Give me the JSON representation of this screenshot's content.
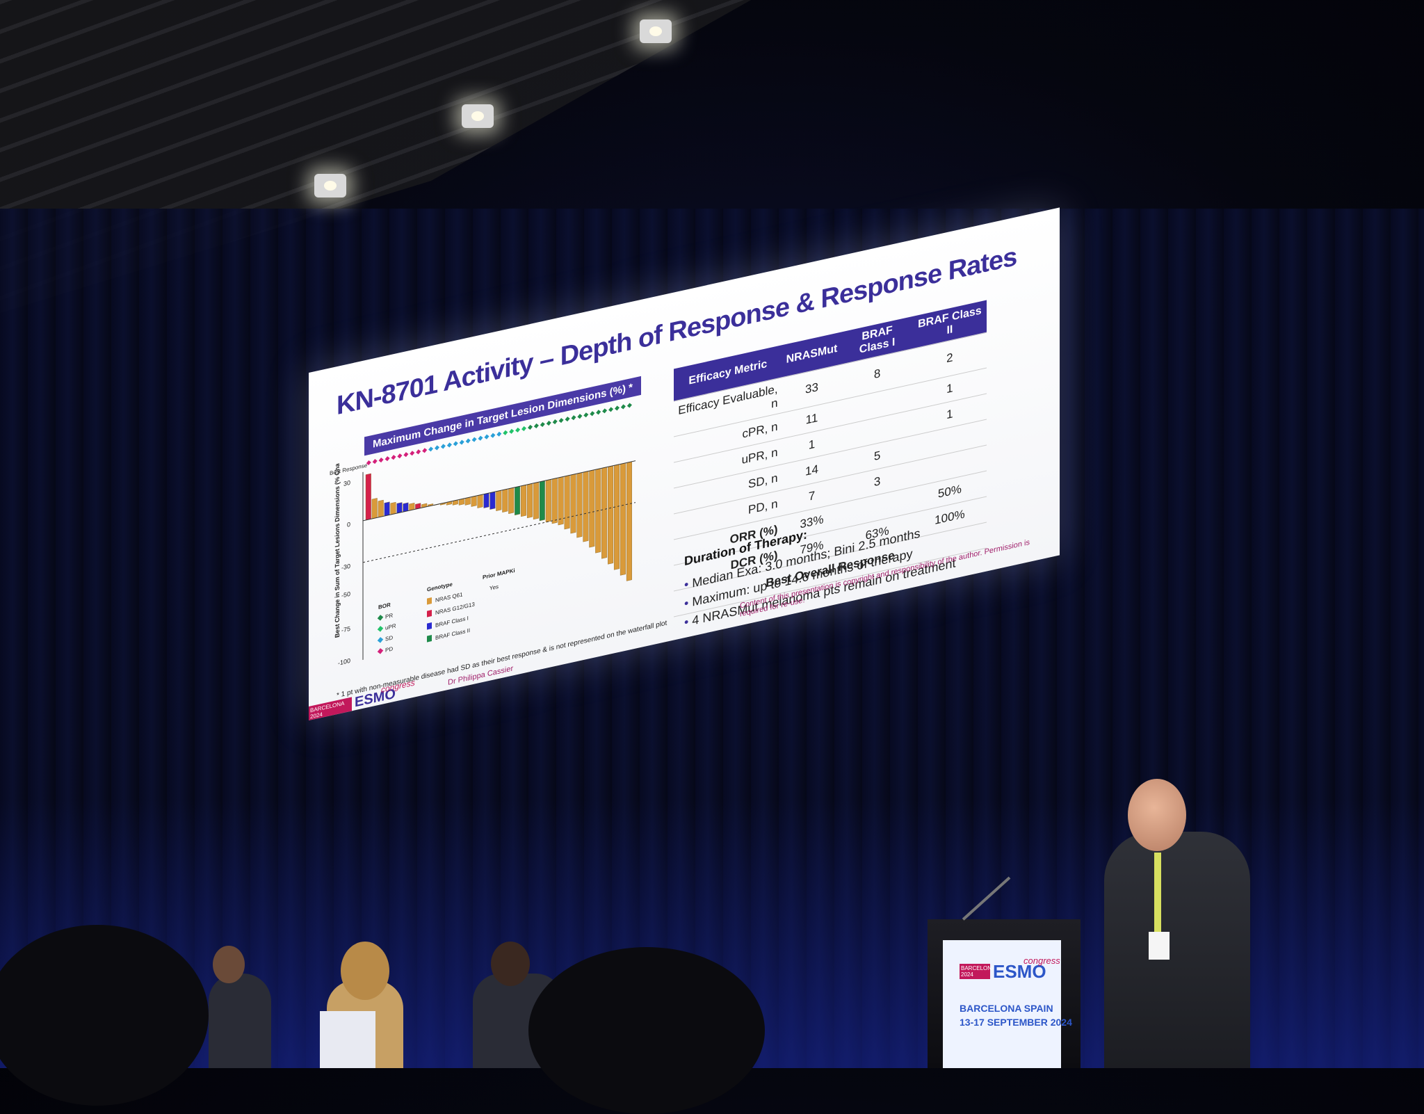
{
  "slide": {
    "title": "KN-8701 Activity – Depth of Response & Response Rates",
    "subtitle": "Maximum Change in Target Lesion Dimensions (%) *",
    "y_axis_label": "Best Change in Sum of Target Lesions Dimensions (% Change From Baseline)",
    "best_response_label": "Best Response",
    "y_ticks": [
      "30",
      "0",
      "-30",
      "-50",
      "-75",
      "-100"
    ],
    "legend": {
      "bor_title": "BOR",
      "bor": [
        "PR",
        "uPR",
        "SD",
        "PD"
      ],
      "genotype_title": "Genotype",
      "genotype": [
        "NRAS Q61",
        "NRAS G12/G13",
        "BRAF Class I",
        "BRAF Class II"
      ],
      "prior_title": "Prior MAPKi",
      "prior": "Yes"
    },
    "table": {
      "headers": [
        "Efficacy Metric",
        "NRASMut",
        "BRAF Class I",
        "BRAF Class II"
      ],
      "rows": [
        {
          "label": "Efficacy Evaluable, n",
          "values": [
            "33",
            "8",
            "2"
          ]
        },
        {
          "label": "cPR, n",
          "values": [
            "11",
            "",
            "1"
          ]
        },
        {
          "label": "uPR, n",
          "values": [
            "1",
            "",
            "1"
          ]
        },
        {
          "label": "SD, n",
          "values": [
            "14",
            "5",
            ""
          ]
        },
        {
          "label": "PD, n",
          "values": [
            "7",
            "3",
            ""
          ]
        },
        {
          "label": "ORR (%)",
          "values": [
            "33%",
            "",
            "50%"
          ]
        },
        {
          "label": "DCR (%)",
          "values": [
            "79%",
            "63%",
            "100%"
          ]
        }
      ],
      "group_label": "Best Overall Response"
    },
    "duration": {
      "title": "Duration of Therapy:",
      "items": [
        "Median Exa: 3.0 months; Bini 2.5 months",
        "Maximum: up to 14.6 months of therapy",
        "4 NRASMut melanoma pts remain on treatment"
      ]
    },
    "footnote": "* 1 pt with non-measurable disease had SD as their best response & is not represented on the waterfall plot",
    "copyright": "Content of this presentation is copyright and responsibility of the author. Permission is required for re-use.",
    "author": "Dr Philippa Cassier",
    "logo_city": "BARCELONA 2024",
    "logo_brand": "ESMO",
    "logo_congress": "congress"
  },
  "podium": {
    "city_year": "BARCELONA 2024",
    "brand": "ESMO",
    "congress": "congress",
    "location": "BARCELONA SPAIN",
    "dates": "13-17 SEPTEMBER 2024"
  },
  "colors": {
    "title": "#3b2f9a",
    "nras_q61": "#d99a3a",
    "nras_g12": "#d4204a",
    "braf_class1": "#2a2ad0",
    "braf_class2": "#1f8a4a",
    "pr": "#1f8a4a",
    "upr": "#22c26a",
    "sd": "#2aa0d8",
    "pd": "#d4207a"
  },
  "chart_data": {
    "type": "bar",
    "values": [
      28,
      12,
      10,
      8,
      7,
      6,
      5,
      4,
      3,
      2,
      1,
      0,
      -1,
      -2,
      -3,
      -4,
      -5,
      -7,
      -9,
      -10,
      -12,
      -14,
      -16,
      -18,
      -20,
      -22,
      -24,
      -26,
      -28,
      -30,
      -32,
      -34,
      -38,
      -42,
      -46,
      -50,
      -55,
      -60,
      -65,
      -70,
      -75,
      -80,
      -85
    ],
    "ylim": [
      -100,
      30
    ]
  }
}
